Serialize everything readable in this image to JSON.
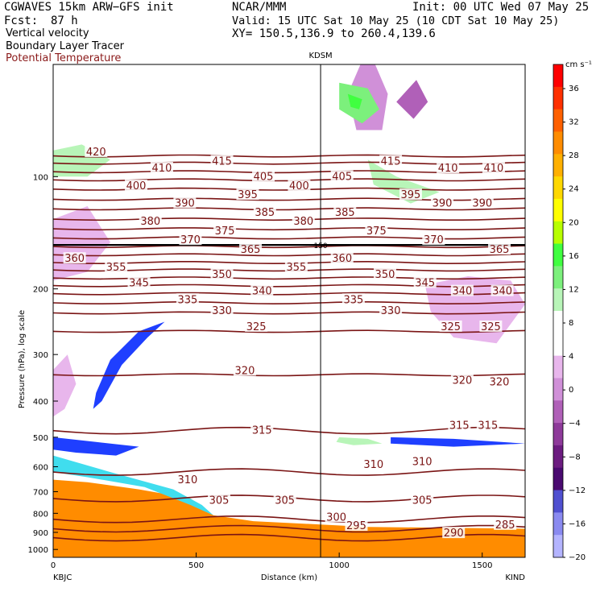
{
  "header": {
    "model": "CGWAVES 15km ARW−GFS init",
    "center": "NCAR/MMM",
    "init": "Init: 00 UTC Wed 07 May 25",
    "fcst_label": "Fcst:",
    "fcst_value": "87 h",
    "valid": "Valid: 15 UTC Sat 10 May 25 (10 CDT Sat 10 May 25)",
    "xy": "XY= 150.5,136.9 to 260.4,139.6",
    "fields": [
      "Vertical velocity",
      "Boundary Layer Tracer",
      "Potential Temperature"
    ],
    "field_colors": [
      "#000000",
      "#000000",
      "#8b1a1a"
    ]
  },
  "chart_data": {
    "type": "heatmap",
    "xlabel": "Distance (km)",
    "ylabel": "Pressure (hPa), log scale",
    "xlim": [
      0,
      1650
    ],
    "ylim": [
      1050,
      50
    ],
    "y_scale": "log",
    "x_ticks": [
      0,
      500,
      1000,
      1500
    ],
    "x_tick_labels": [
      "0",
      "500",
      "1000",
      "1500"
    ],
    "y_ticks": [
      100,
      200,
      300,
      400,
      500,
      600,
      700,
      800,
      900,
      1000
    ],
    "y_tick_labels": [
      "100",
      "200",
      "300",
      "400",
      "500",
      "600",
      "700",
      "800",
      "900",
      "1000"
    ],
    "endpoint_left": "KBJC",
    "endpoint_right": "KIND",
    "station_marker": {
      "label": "KDSM",
      "x": 935
    },
    "tropopause_label": "150",
    "colorbar": {
      "units": "cm s⁻¹",
      "labels": [
        "36",
        "32",
        "28",
        "24",
        "20",
        "16",
        "12",
        "8",
        "4",
        "0",
        "−4",
        "−8",
        "−12",
        "−16",
        "−20"
      ],
      "colors": [
        "#ff0000",
        "#ff3000",
        "#ff6000",
        "#ff8c00",
        "#ffb000",
        "#ffd800",
        "#ffff00",
        "#b8ff00",
        "#40ff40",
        "#7cf07c",
        "#b8f5b8",
        "#ffffff",
        "#ffffff",
        "#e8b6ec",
        "#d090d8",
        "#b060b8",
        "#8e3a9a",
        "#6c1c80",
        "#4a0a70",
        "#5050d0",
        "#8a8af0",
        "#b4b4ff"
      ]
    },
    "isentropes": [
      {
        "theta": 420,
        "p": 88
      },
      {
        "theta": 415,
        "p": 92
      },
      {
        "theta": 410,
        "p": 97
      },
      {
        "theta": 405,
        "p": 102
      },
      {
        "theta": 400,
        "p": 108
      },
      {
        "theta": 395,
        "p": 115
      },
      {
        "theta": 390,
        "p": 122
      },
      {
        "theta": 385,
        "p": 130
      },
      {
        "theta": 380,
        "p": 138
      },
      {
        "theta": 375,
        "p": 146
      },
      {
        "theta": 370,
        "p": 154
      },
      {
        "theta": 365,
        "p": 162
      },
      {
        "theta": 360,
        "p": 170
      },
      {
        "theta": 355,
        "p": 178
      },
      {
        "theta": 350,
        "p": 187
      },
      {
        "theta": 345,
        "p": 196
      },
      {
        "theta": 340,
        "p": 206
      },
      {
        "theta": 335,
        "p": 218
      },
      {
        "theta": 330,
        "p": 232
      },
      {
        "theta": 325,
        "p": 260
      },
      {
        "theta": 320,
        "p": 340
      },
      {
        "theta": 315,
        "p": 480
      },
      {
        "theta": 310,
        "p": 620
      },
      {
        "theta": 305,
        "p": 730
      },
      {
        "theta": 300,
        "p": 830
      },
      {
        "theta": 295,
        "p": 880
      },
      {
        "theta": 290,
        "p": 930
      }
    ],
    "isentrope_labels": [
      {
        "text": "420",
        "x": 150,
        "p": 86
      },
      {
        "text": "410",
        "x": 380,
        "p": 95
      },
      {
        "text": "415",
        "x": 590,
        "p": 91
      },
      {
        "text": "405",
        "x": 735,
        "p": 100
      },
      {
        "text": "400",
        "x": 860,
        "p": 106
      },
      {
        "text": "405",
        "x": 1010,
        "p": 100
      },
      {
        "text": "415",
        "x": 1180,
        "p": 91
      },
      {
        "text": "410",
        "x": 1380,
        "p": 95
      },
      {
        "text": "410",
        "x": 1540,
        "p": 95
      },
      {
        "text": "400",
        "x": 290,
        "p": 106
      },
      {
        "text": "395",
        "x": 680,
        "p": 112
      },
      {
        "text": "390",
        "x": 460,
        "p": 118
      },
      {
        "text": "395",
        "x": 1250,
        "p": 112
      },
      {
        "text": "390",
        "x": 1360,
        "p": 118
      },
      {
        "text": "390",
        "x": 1500,
        "p": 118
      },
      {
        "text": "380",
        "x": 340,
        "p": 132
      },
      {
        "text": "385",
        "x": 740,
        "p": 125
      },
      {
        "text": "380",
        "x": 875,
        "p": 132
      },
      {
        "text": "385",
        "x": 1020,
        "p": 125
      },
      {
        "text": "375",
        "x": 600,
        "p": 140
      },
      {
        "text": "375",
        "x": 1130,
        "p": 140
      },
      {
        "text": "370",
        "x": 480,
        "p": 148
      },
      {
        "text": "370",
        "x": 1330,
        "p": 148
      },
      {
        "text": "365",
        "x": 690,
        "p": 157
      },
      {
        "text": "365",
        "x": 1560,
        "p": 157
      },
      {
        "text": "360",
        "x": 75,
        "p": 166
      },
      {
        "text": "360",
        "x": 1010,
        "p": 166
      },
      {
        "text": "355",
        "x": 220,
        "p": 175
      },
      {
        "text": "355",
        "x": 850,
        "p": 175
      },
      {
        "text": "350",
        "x": 590,
        "p": 183
      },
      {
        "text": "350",
        "x": 1160,
        "p": 183
      },
      {
        "text": "345",
        "x": 300,
        "p": 193
      },
      {
        "text": "345",
        "x": 1300,
        "p": 193
      },
      {
        "text": "340",
        "x": 730,
        "p": 203
      },
      {
        "text": "340",
        "x": 1430,
        "p": 203
      },
      {
        "text": "340",
        "x": 1570,
        "p": 203
      },
      {
        "text": "335",
        "x": 470,
        "p": 214
      },
      {
        "text": "335",
        "x": 1050,
        "p": 214
      },
      {
        "text": "330",
        "x": 590,
        "p": 229
      },
      {
        "text": "330",
        "x": 1180,
        "p": 229
      },
      {
        "text": "325",
        "x": 710,
        "p": 253
      },
      {
        "text": "325",
        "x": 1390,
        "p": 253
      },
      {
        "text": "325",
        "x": 1530,
        "p": 253
      },
      {
        "text": "320",
        "x": 670,
        "p": 332
      },
      {
        "text": "320",
        "x": 1430,
        "p": 352
      },
      {
        "text": "320",
        "x": 1560,
        "p": 356
      },
      {
        "text": "315",
        "x": 730,
        "p": 480
      },
      {
        "text": "315",
        "x": 1420,
        "p": 465
      },
      {
        "text": "315",
        "x": 1520,
        "p": 465
      },
      {
        "text": "310",
        "x": 470,
        "p": 652
      },
      {
        "text": "310",
        "x": 1120,
        "p": 592
      },
      {
        "text": "310",
        "x": 1290,
        "p": 582
      },
      {
        "text": "305",
        "x": 580,
        "p": 740
      },
      {
        "text": "305",
        "x": 810,
        "p": 740
      },
      {
        "text": "305",
        "x": 1290,
        "p": 740
      },
      {
        "text": "300",
        "x": 990,
        "p": 820
      },
      {
        "text": "295",
        "x": 1060,
        "p": 865
      },
      {
        "text": "290",
        "x": 1400,
        "p": 905
      },
      {
        "text": "285",
        "x": 1580,
        "p": 860
      }
    ],
    "regions": [
      {
        "name": "terrain-fill",
        "color": "#ff8c00",
        "points": [
          [
            0,
            650
          ],
          [
            120,
            660
          ],
          [
            300,
            690
          ],
          [
            480,
            730
          ],
          [
            560,
            810
          ],
          [
            700,
            840
          ],
          [
            1100,
            870
          ],
          [
            1650,
            880
          ],
          [
            1650,
            1050
          ],
          [
            0,
            1050
          ]
        ]
      },
      {
        "name": "bl-tracer-cyan",
        "color": "#40ddee",
        "points": [
          [
            0,
            560
          ],
          [
            200,
            620
          ],
          [
            420,
            690
          ],
          [
            520,
            760
          ],
          [
            560,
            810
          ],
          [
            480,
            760
          ],
          [
            320,
            680
          ],
          [
            120,
            640
          ],
          [
            0,
            620
          ]
        ]
      },
      {
        "name": "updraft-blue-upper",
        "color": "#1f3fff",
        "points": [
          [
            150,
            380
          ],
          [
            200,
            310
          ],
          [
            300,
            260
          ],
          [
            390,
            245
          ],
          [
            330,
            270
          ],
          [
            240,
            320
          ],
          [
            170,
            400
          ],
          [
            140,
            420
          ]
        ]
      },
      {
        "name": "updraft-blue-mid",
        "color": "#1f3fff",
        "points": [
          [
            0,
            500
          ],
          [
            150,
            515
          ],
          [
            300,
            530
          ],
          [
            220,
            560
          ],
          [
            80,
            550
          ],
          [
            0,
            540
          ]
        ]
      },
      {
        "name": "updraft-blue-right",
        "color": "#1f3fff",
        "points": [
          [
            1180,
            500
          ],
          [
            1400,
            505
          ],
          [
            1650,
            520
          ],
          [
            1400,
            530
          ],
          [
            1180,
            520
          ]
        ]
      },
      {
        "name": "downdraft-purple-1",
        "color": "#d090d8",
        "points": [
          [
            1030,
            60
          ],
          [
            1100,
            45
          ],
          [
            1170,
            60
          ],
          [
            1150,
            75
          ],
          [
            1060,
            75
          ]
        ]
      },
      {
        "name": "downdraft-purple-2",
        "color": "#b060b8",
        "points": [
          [
            1200,
            63
          ],
          [
            1270,
            55
          ],
          [
            1310,
            63
          ],
          [
            1260,
            70
          ]
        ]
      },
      {
        "name": "downdraft-purple-3",
        "color": "#e8b6ec",
        "points": [
          [
            1300,
            195
          ],
          [
            1450,
            185
          ],
          [
            1600,
            190
          ],
          [
            1650,
            220
          ],
          [
            1550,
            280
          ],
          [
            1400,
            270
          ],
          [
            1320,
            230
          ]
        ]
      },
      {
        "name": "downdraft-purple-4",
        "color": "#e8b6ec",
        "points": [
          [
            0,
            330
          ],
          [
            50,
            300
          ],
          [
            80,
            360
          ],
          [
            40,
            420
          ],
          [
            0,
            440
          ]
        ]
      },
      {
        "name": "downdraft-purple-5",
        "color": "#e8b6ec",
        "points": [
          [
            0,
            130
          ],
          [
            120,
            120
          ],
          [
            200,
            150
          ],
          [
            120,
            180
          ],
          [
            0,
            190
          ]
        ]
      },
      {
        "name": "updraft-green-1",
        "color": "#7cf07c",
        "points": [
          [
            1000,
            56
          ],
          [
            1100,
            58
          ],
          [
            1140,
            66
          ],
          [
            1080,
            72
          ],
          [
            1000,
            66
          ]
        ]
      },
      {
        "name": "updraft-green-2",
        "color": "#40ff40",
        "points": [
          [
            1030,
            60
          ],
          [
            1080,
            62
          ],
          [
            1070,
            66
          ],
          [
            1040,
            65
          ]
        ]
      },
      {
        "name": "updraft-green-3",
        "color": "#b8f5b8",
        "points": [
          [
            1100,
            90
          ],
          [
            1200,
            100
          ],
          [
            1350,
            110
          ],
          [
            1250,
            118
          ],
          [
            1120,
            105
          ]
        ]
      },
      {
        "name": "updraft-green-4",
        "color": "#b8f5b8",
        "points": [
          [
            0,
            85
          ],
          [
            100,
            82
          ],
          [
            200,
            90
          ],
          [
            120,
            100
          ],
          [
            0,
            100
          ]
        ]
      },
      {
        "name": "updraft-green-5",
        "color": "#b8f5b8",
        "points": [
          [
            1000,
            500
          ],
          [
            1100,
            505
          ],
          [
            1150,
            520
          ],
          [
            1050,
            525
          ],
          [
            990,
            515
          ]
        ]
      }
    ]
  }
}
